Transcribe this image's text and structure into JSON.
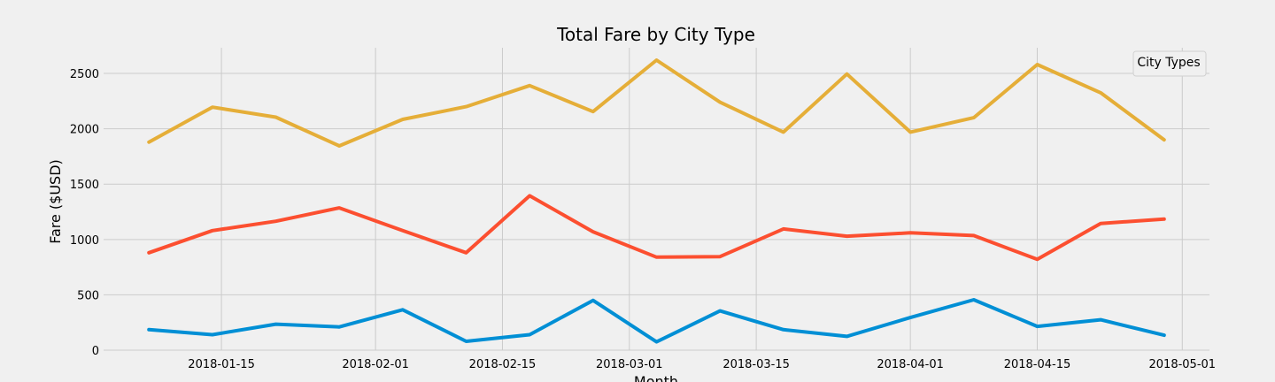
{
  "chart_data": {
    "type": "line",
    "title": "Total Fare by City Type",
    "xlabel": "Month",
    "ylabel": "Fare ($USD)",
    "legend_title": "City Types",
    "legend_position": "top-right",
    "grid": true,
    "ylim": [
      0,
      2700
    ],
    "xlim": [
      "2018-01-02",
      "2018-05-04"
    ],
    "x_ticks": [
      "2018-01-15",
      "2018-02-01",
      "2018-02-15",
      "2018-03-01",
      "2018-03-15",
      "2018-04-01",
      "2018-04-15",
      "2018-05-01"
    ],
    "y_ticks": [
      0,
      500,
      1000,
      1500,
      2000,
      2500
    ],
    "x": [
      "2018-01-07",
      "2018-01-14",
      "2018-01-21",
      "2018-01-28",
      "2018-02-04",
      "2018-02-11",
      "2018-02-18",
      "2018-02-25",
      "2018-03-04",
      "2018-03-11",
      "2018-03-18",
      "2018-03-25",
      "2018-04-01",
      "2018-04-08",
      "2018-04-15",
      "2018-04-22",
      "2018-04-29"
    ],
    "series": [
      {
        "color": "#e5ae38",
        "values": [
          1880,
          2195,
          2105,
          1845,
          2085,
          2200,
          2390,
          2155,
          2620,
          2240,
          1970,
          2495,
          1970,
          2100,
          2580,
          2325,
          1900
        ]
      },
      {
        "color": "#fc4f30",
        "values": [
          880,
          1080,
          1165,
          1285,
          1080,
          880,
          1395,
          1070,
          840,
          845,
          1095,
          1030,
          1060,
          1035,
          820,
          1145,
          1185
        ]
      },
      {
        "color": "#008fd5",
        "values": [
          185,
          140,
          235,
          210,
          365,
          80,
          140,
          450,
          75,
          355,
          185,
          125,
          295,
          455,
          215,
          275,
          135
        ]
      }
    ]
  }
}
